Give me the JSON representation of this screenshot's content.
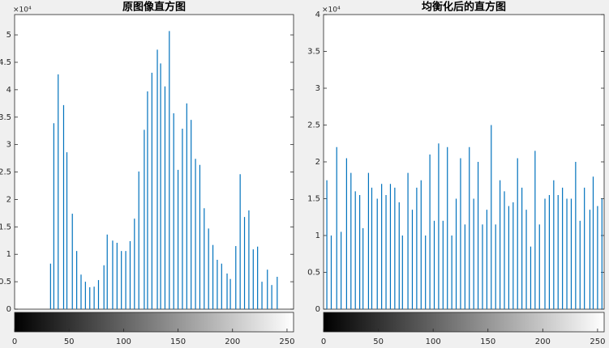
{
  "chart_data": [
    {
      "type": "stem",
      "title": "原图像直方图",
      "y_exponent_label": "×10⁴",
      "color": "#0072bd",
      "xlim": [
        0,
        256
      ],
      "xticks": [
        0,
        50,
        100,
        150,
        200,
        250
      ],
      "ylim": [
        0,
        5.37
      ],
      "yticks": [
        0,
        0.5,
        1,
        1.5,
        2,
        2.5,
        3,
        3.5,
        4,
        4.5,
        5
      ],
      "x": [
        33,
        36,
        40,
        45,
        48,
        53,
        57,
        61,
        65,
        69,
        73,
        77,
        82,
        85,
        90,
        94,
        98,
        102,
        106,
        110,
        114,
        119,
        122,
        126,
        131,
        134,
        138,
        142,
        146,
        150,
        154,
        158,
        162,
        166,
        170,
        174,
        178,
        182,
        186,
        190,
        195,
        198,
        203,
        207,
        211,
        215,
        219,
        223,
        227,
        232,
        236,
        241
      ],
      "values": [
        0.83,
        3.39,
        4.28,
        3.72,
        2.86,
        1.74,
        1.06,
        0.63,
        0.5,
        0.4,
        0.41,
        0.53,
        0.8,
        1.36,
        1.25,
        1.21,
        1.06,
        1.06,
        1.24,
        1.65,
        2.51,
        3.27,
        3.97,
        4.31,
        4.73,
        4.48,
        4.06,
        5.07,
        3.57,
        2.54,
        3.29,
        3.75,
        3.45,
        2.74,
        2.63,
        1.84,
        1.47,
        1.17,
        0.9,
        0.83,
        0.65,
        0.55,
        1.15,
        2.46,
        1.68,
        1.8,
        1.09,
        1.14,
        0.5,
        0.72,
        0.44,
        0.59
      ]
    },
    {
      "type": "stem",
      "title": "均衡化后的直方图",
      "y_exponent_label": "×10⁴",
      "color": "#0072bd",
      "xlim": [
        0,
        256
      ],
      "xticks": [
        0,
        50,
        100,
        150,
        200,
        250
      ],
      "ylim": [
        0,
        4
      ],
      "yticks": [
        0,
        0.5,
        1,
        1.5,
        2,
        2.5,
        3,
        3.5,
        4
      ],
      "x": [
        3,
        7,
        12,
        16,
        21,
        25,
        29,
        33,
        36,
        41,
        44,
        49,
        53,
        57,
        61,
        65,
        69,
        72,
        77,
        81,
        85,
        89,
        93,
        97,
        101,
        105,
        109,
        113,
        117,
        121,
        125,
        129,
        133,
        137,
        141,
        145,
        149,
        153,
        157,
        161,
        165,
        169,
        173,
        177,
        181,
        185,
        189,
        193,
        197,
        202,
        206,
        210,
        214,
        218,
        222,
        226,
        230,
        234,
        238,
        243,
        246,
        250,
        254
      ],
      "values": [
        1.75,
        1.0,
        2.2,
        1.05,
        2.05,
        1.85,
        1.6,
        1.55,
        1.1,
        1.85,
        1.65,
        1.5,
        1.7,
        1.55,
        1.7,
        1.65,
        1.45,
        1.0,
        1.85,
        1.35,
        1.65,
        1.75,
        1.0,
        2.1,
        1.2,
        2.25,
        1.2,
        2.2,
        1.0,
        1.5,
        2.05,
        1.15,
        2.2,
        1.5,
        2.0,
        1.15,
        1.35,
        2.5,
        1.15,
        1.75,
        1.6,
        1.4,
        1.45,
        2.05,
        1.65,
        1.35,
        0.85,
        2.15,
        1.15,
        1.5,
        1.55,
        1.75,
        1.55,
        1.65,
        1.5,
        1.5,
        2.0,
        1.2,
        1.65,
        1.35,
        1.8,
        1.4,
        1.5
      ]
    }
  ]
}
